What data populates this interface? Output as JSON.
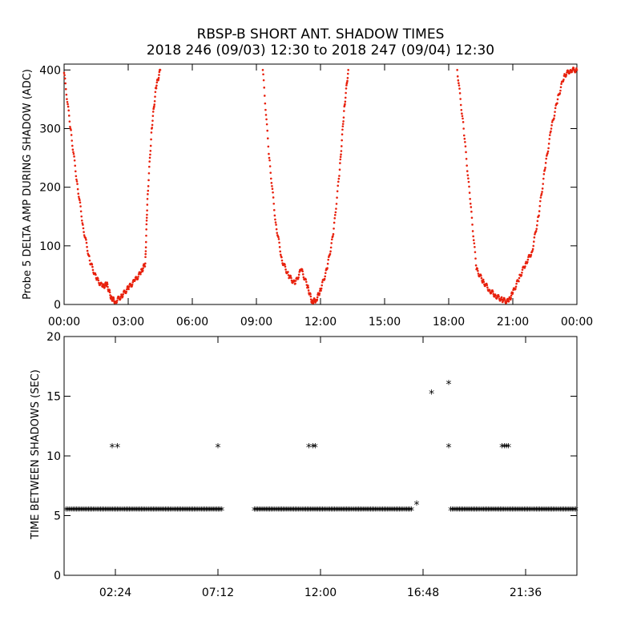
{
  "title": {
    "line1": "RBSP-B SHORT ANT. SHADOW TIMES",
    "line2": "2018 246 (09/03) 12:30 to 2018 247 (09/04) 12:30"
  },
  "colors": {
    "red": "#e8200c",
    "black": "#000000"
  },
  "chart_data": [
    {
      "type": "scatter",
      "ylabel": "Probe 5 DELTA AMP DURING SHADOW (ADC)",
      "xlim": [
        0,
        24
      ],
      "ylim": [
        0,
        410
      ],
      "x_tick_labels": [
        "00:00",
        "03:00",
        "06:00",
        "09:00",
        "12:00",
        "15:00",
        "18:00",
        "21:00",
        "00:00"
      ],
      "x_ticks_hours": [
        0,
        3,
        6,
        9,
        12,
        15,
        18,
        21,
        24
      ],
      "y_ticks": [
        0,
        100,
        200,
        300,
        400
      ],
      "marker": "dot",
      "color": "#e8200c",
      "series": [
        {
          "x": [
            0.0,
            0.3,
            0.6,
            0.9,
            1.2,
            1.5,
            1.8,
            2.0,
            2.2,
            2.4,
            2.7,
            3.0,
            3.3,
            3.6,
            3.8,
            3.9,
            4.1,
            4.3,
            4.5,
            9.3,
            9.6,
            9.9,
            10.2,
            10.5,
            10.8,
            11.1,
            11.4,
            11.6,
            11.8,
            12.0,
            12.3,
            12.6,
            12.9,
            13.1,
            13.3,
            18.4,
            18.7,
            19.0,
            19.3,
            19.6,
            19.9,
            20.2,
            20.5,
            20.8,
            21.0,
            21.3,
            21.6,
            21.9,
            22.2,
            22.5,
            22.8,
            23.1,
            23.4,
            23.7,
            24.0
          ],
          "y": [
            395,
            300,
            210,
            130,
            75,
            45,
            30,
            35,
            12,
            5,
            15,
            28,
            40,
            55,
            70,
            180,
            300,
            370,
            400,
            400,
            250,
            140,
            75,
            50,
            35,
            60,
            30,
            5,
            8,
            25,
            60,
            120,
            230,
            330,
            400,
            400,
            300,
            180,
            60,
            40,
            25,
            15,
            8,
            5,
            20,
            45,
            70,
            90,
            150,
            230,
            300,
            350,
            390,
            400,
            400
          ]
        }
      ]
    },
    {
      "type": "scatter",
      "ylabel": "TIME BETWEEN SHADOWS (SEC)",
      "xlim": [
        0,
        24
      ],
      "ylim": [
        0,
        20
      ],
      "x_tick_labels": [
        "02:24",
        "07:12",
        "12:00",
        "16:48",
        "21:36"
      ],
      "x_ticks_hours": [
        2.4,
        7.2,
        12.0,
        16.8,
        21.6
      ],
      "y_ticks": [
        0,
        5,
        10,
        15,
        20
      ],
      "marker": "asterisk",
      "color": "#000000",
      "baseline_runs": [
        {
          "x_start": 0.1,
          "x_end": 7.4,
          "y": 5.4
        },
        {
          "x_start": 8.9,
          "x_end": 16.3,
          "y": 5.4
        },
        {
          "x_start": 18.1,
          "x_end": 24.0,
          "y": 5.4
        }
      ],
      "series": [
        {
          "x": [
            2.25,
            2.5,
            7.2,
            11.45,
            11.65,
            11.75,
            16.5,
            17.2,
            18.0,
            18.0,
            20.5,
            20.6,
            20.7,
            20.8
          ],
          "y": [
            10.7,
            10.7,
            10.7,
            10.7,
            10.7,
            10.7,
            5.9,
            15.2,
            16.0,
            10.7,
            10.7,
            10.7,
            10.7,
            10.7
          ]
        }
      ]
    }
  ]
}
